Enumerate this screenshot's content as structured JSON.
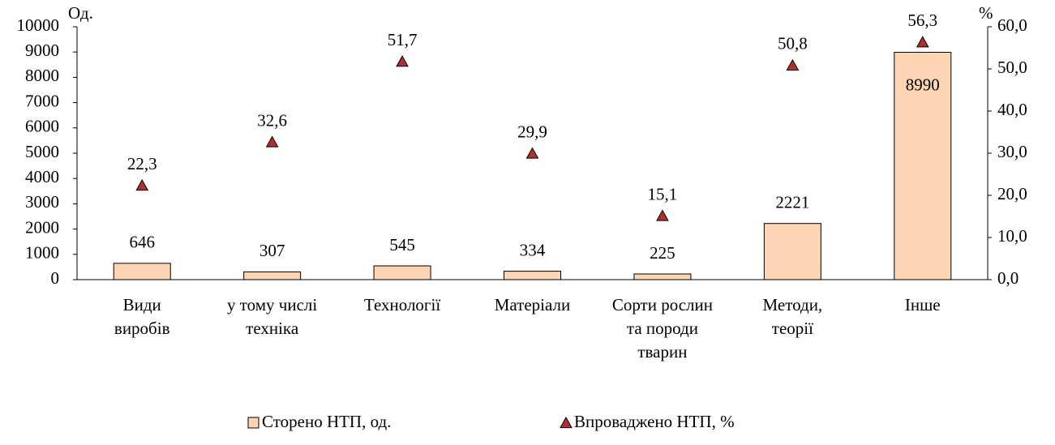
{
  "chart_data": {
    "type": "bar",
    "y_label": "Од.",
    "y2_label": "%",
    "categories": [
      [
        "Види",
        "виробів"
      ],
      [
        "у тому числі",
        "техніка"
      ],
      [
        "Технології"
      ],
      [
        "Матеріали"
      ],
      [
        "Сорти рослин",
        "та породи",
        "тварин"
      ],
      [
        "Методи,",
        "теорії"
      ],
      [
        "Інше"
      ]
    ],
    "series": [
      {
        "name": "Сторено НТП, од.",
        "type": "bar",
        "color": "#fcd5b5",
        "values": [
          646,
          307,
          545,
          334,
          225,
          2221,
          8990
        ]
      },
      {
        "name": "Впроваджено НТП, %",
        "type": "scatter",
        "axis": "y2",
        "color": "#b0302f",
        "values": [
          22.3,
          32.6,
          51.7,
          29.9,
          15.1,
          50.8,
          56.3
        ],
        "value_labels": [
          "22,3",
          "32,6",
          "51,7",
          "29,9",
          "15,1",
          "50,8",
          "56,3"
        ]
      }
    ],
    "ylim": [
      0,
      10000
    ],
    "yticks": [
      0,
      1000,
      2000,
      3000,
      4000,
      5000,
      6000,
      7000,
      8000,
      9000,
      10000
    ],
    "y2lim": [
      0,
      60
    ],
    "y2ticks": [
      {
        "value": 0,
        "label": "0,0"
      },
      {
        "value": 10,
        "label": "10,0"
      },
      {
        "value": 20,
        "label": "20,0"
      },
      {
        "value": 30,
        "label": "30,0"
      },
      {
        "value": 40,
        "label": "40,0"
      },
      {
        "value": 50,
        "label": "50,0"
      },
      {
        "value": 60,
        "label": "60,0"
      }
    ],
    "legend": "bottom"
  }
}
